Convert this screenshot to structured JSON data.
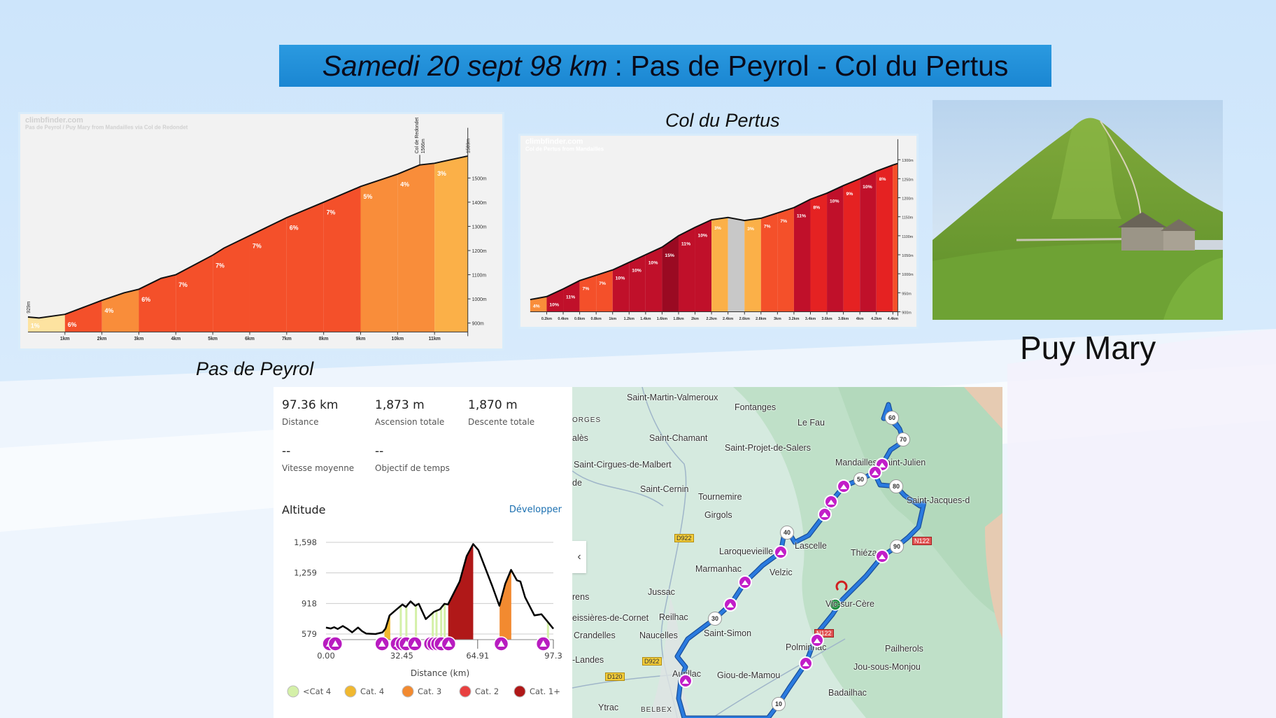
{
  "title": {
    "italic": "Samedi 20 sept 98 km",
    "rest": ": Pas de Peyrol - Col du Pertus"
  },
  "captions": {
    "peyrol": "Pas de Peyrol",
    "pertus": "Col du Pertus",
    "puy_mary": "Puy Mary"
  },
  "peyrol_chart": {
    "brand": "climbfinder.com",
    "subtitle": "Pas de Peyrol / Puy Mary from Mandailles via Col de Redondet",
    "start_label": "929m",
    "col_label": "Col de Redondet",
    "col_elev": "1566m",
    "end_label": "1589m",
    "y_ticks": [
      900,
      1000,
      1100,
      1200,
      1300,
      1400,
      1500
    ],
    "y_unit": "m",
    "x_ticks": [
      "1km",
      "2km",
      "3km",
      "4km",
      "5km",
      "6km",
      "7km",
      "8km",
      "9km",
      "10km",
      "11km"
    ],
    "profile": [
      [
        0,
        925
      ],
      [
        0.3,
        921
      ],
      [
        1,
        936
      ],
      [
        1.5,
        965
      ],
      [
        2,
        994
      ],
      [
        2.6,
        1025
      ],
      [
        3,
        1040
      ],
      [
        3.6,
        1085
      ],
      [
        4,
        1100
      ],
      [
        5,
        1181
      ],
      [
        5.3,
        1210
      ],
      [
        6,
        1262
      ],
      [
        7,
        1336
      ],
      [
        8,
        1400
      ],
      [
        9,
        1465
      ],
      [
        10,
        1516
      ],
      [
        10.6,
        1554
      ],
      [
        11,
        1561
      ],
      [
        11.9,
        1591
      ]
    ],
    "segments": [
      {
        "from": 0,
        "to": 1,
        "color": "#fde3a0",
        "label": "1%"
      },
      {
        "from": 1,
        "to": 2,
        "color": "#f4502a",
        "label": "6%"
      },
      {
        "from": 2,
        "to": 3,
        "color": "#f98d3a",
        "label": "4%"
      },
      {
        "from": 3,
        "to": 4,
        "color": "#f4502a",
        "label": "6%"
      },
      {
        "from": 4,
        "to": 5,
        "color": "#f4502a",
        "label": "7%"
      },
      {
        "from": 5,
        "to": 6,
        "color": "#f4502a",
        "label": "7%"
      },
      {
        "from": 6,
        "to": 7,
        "color": "#f4502a",
        "label": "7%"
      },
      {
        "from": 7,
        "to": 8,
        "color": "#f4502a",
        "label": "6%"
      },
      {
        "from": 8,
        "to": 9,
        "color": "#f4502a",
        "label": "7%"
      },
      {
        "from": 9,
        "to": 10,
        "color": "#f98d3a",
        "label": "5%"
      },
      {
        "from": 10,
        "to": 11,
        "color": "#f98d3a",
        "label": "4%"
      },
      {
        "from": 11,
        "to": 11.9,
        "color": "#fbb048",
        "label": "3%"
      }
    ]
  },
  "pertus_chart": {
    "brand": "climbfinder.com",
    "subtitle": "Col de Pertus from Mandailles",
    "start_elev": 932,
    "seg_len": 0.2,
    "y_ticks": [
      900,
      950,
      1000,
      1050,
      1100,
      1150,
      1200,
      1250,
      1300
    ],
    "y_unit": "m",
    "x_ticks": [
      "0.2km",
      "0.4km",
      "0.6km",
      "0.8km",
      "1km",
      "1.2km",
      "1.4km",
      "1.6km",
      "1.8km",
      "2km",
      "2.2km",
      "2.4km",
      "2.6km",
      "2.8km",
      "3km",
      "3.2km",
      "3.4km",
      "3.6km",
      "3.8km",
      "4km",
      "4.2km",
      "4.4km"
    ],
    "segments": [
      {
        "g": 4,
        "color": "#f98d3a",
        "label": "4%"
      },
      {
        "g": 10,
        "color": "#c0102a",
        "label": "10%"
      },
      {
        "g": 11,
        "color": "#c0102a",
        "label": "11%"
      },
      {
        "g": 7,
        "color": "#f4502a",
        "label": "7%"
      },
      {
        "g": 7,
        "color": "#f4502a",
        "label": "7%"
      },
      {
        "g": 10,
        "color": "#c0102a",
        "label": "10%"
      },
      {
        "g": 10,
        "color": "#c0102a",
        "label": "10%"
      },
      {
        "g": 10,
        "color": "#c0102a",
        "label": "10%"
      },
      {
        "g": 15,
        "color": "#9a0a22",
        "label": "15%"
      },
      {
        "g": 11,
        "color": "#c0102a",
        "label": "11%"
      },
      {
        "g": 10,
        "color": "#c0102a",
        "label": "10%"
      },
      {
        "g": 3,
        "color": "#fbb048",
        "label": "3%"
      },
      {
        "g": -4,
        "color": "#c8c8c8",
        "label": ""
      },
      {
        "g": 3,
        "color": "#fbb048",
        "label": "3%"
      },
      {
        "g": 7,
        "color": "#f4502a",
        "label": "7%"
      },
      {
        "g": 7,
        "color": "#f4502a",
        "label": "7%"
      },
      {
        "g": 11,
        "color": "#c0102a",
        "label": "11%"
      },
      {
        "g": 8,
        "color": "#e52222",
        "label": "8%"
      },
      {
        "g": 10,
        "color": "#c0102a",
        "label": "10%"
      },
      {
        "g": 9,
        "color": "#e52222",
        "label": "9%"
      },
      {
        "g": 10,
        "color": "#c0102a",
        "label": "10%"
      },
      {
        "g": 8,
        "color": "#e52222",
        "label": "8%"
      },
      {
        "g": 7,
        "color": "#f4502a",
        "label": ""
      }
    ]
  },
  "stats": {
    "distance": {
      "value": "97.36 km",
      "label": "Distance"
    },
    "ascent": {
      "value": "1,873 m",
      "label": "Ascension totale"
    },
    "descent": {
      "value": "1,870 m",
      "label": "Descente totale"
    },
    "speed": {
      "value": "--",
      "label": "Vitesse moyenne"
    },
    "time": {
      "value": "--",
      "label": "Objectif de temps"
    },
    "altitude_title": "Altitude",
    "expand": "Développer"
  },
  "chart_data": {
    "type": "area",
    "xlabel": "Distance (km)",
    "ylabel": "",
    "xlim": [
      0,
      97.3
    ],
    "ylim": [
      579,
      1598
    ],
    "y_ticks": [
      "579",
      "918",
      "1,259",
      "1,598"
    ],
    "y_tick_values": [
      579,
      918,
      1259,
      1598
    ],
    "x_ticks": [
      "0.00",
      "32.45",
      "64.91",
      "97.3"
    ],
    "x_tick_values": [
      0,
      32.45,
      64.91,
      97.3
    ],
    "profile": [
      [
        0,
        651
      ],
      [
        2,
        640
      ],
      [
        3.5,
        655
      ],
      [
        5,
        635
      ],
      [
        7.2,
        668
      ],
      [
        9,
        640
      ],
      [
        11.2,
        598
      ],
      [
        13.7,
        651
      ],
      [
        15.5,
        610
      ],
      [
        17.2,
        584
      ],
      [
        21.2,
        579
      ],
      [
        24.2,
        598
      ],
      [
        25.5,
        640
      ],
      [
        27.2,
        786
      ],
      [
        30.2,
        853
      ],
      [
        32.7,
        907
      ],
      [
        34.2,
        880
      ],
      [
        36.2,
        942
      ],
      [
        38.2,
        893
      ],
      [
        39.7,
        915
      ],
      [
        42.7,
        745
      ],
      [
        46.2,
        826
      ],
      [
        48.7,
        853
      ],
      [
        50.7,
        915
      ],
      [
        52.2,
        907
      ],
      [
        57.2,
        1163
      ],
      [
        60.2,
        1445
      ],
      [
        63,
        1579
      ],
      [
        65.2,
        1512
      ],
      [
        71.2,
        1109
      ],
      [
        74.2,
        893
      ],
      [
        76.7,
        1136
      ],
      [
        79.2,
        1292
      ],
      [
        81.7,
        1176
      ],
      [
        83.2,
        1163
      ],
      [
        85.2,
        988
      ],
      [
        89.2,
        786
      ],
      [
        92.2,
        799
      ],
      [
        95.2,
        705
      ],
      [
        97.3,
        638
      ]
    ],
    "climbs": [
      {
        "from": 25,
        "to": 27.5,
        "cat": "Cat. 4"
      },
      {
        "from": 52.3,
        "to": 63,
        "cat": "Cat. 1+"
      },
      {
        "from": 74.3,
        "to": 79.3,
        "cat": "Cat. 3"
      },
      {
        "at": 32,
        "cat": "<Cat 4"
      },
      {
        "at": 34.4,
        "cat": "<Cat 4"
      },
      {
        "at": 38.5,
        "cat": "<Cat 4"
      },
      {
        "at": 45.7,
        "cat": "<Cat 4"
      },
      {
        "at": 47.3,
        "cat": "<Cat 4"
      },
      {
        "at": 49.3,
        "cat": "<Cat 4"
      },
      {
        "at": 50.8,
        "cat": "<Cat 4"
      },
      {
        "at": 95,
        "cat": "<Cat 4"
      }
    ],
    "markers_km": [
      1.5,
      4,
      24,
      30.5,
      32.7,
      34.3,
      38,
      44.8,
      46.2,
      47.8,
      49.3,
      52.5,
      75,
      93
    ],
    "legend": [
      {
        "name": "<Cat 4",
        "color": "#d4f0a8"
      },
      {
        "name": "Cat. 4",
        "color": "#f0b830"
      },
      {
        "name": "Cat. 3",
        "color": "#f28a30"
      },
      {
        "name": "Cat. 2",
        "color": "#e84040"
      },
      {
        "name": "Cat. 1+",
        "color": "#b01818"
      }
    ]
  },
  "map": {
    "places": [
      "Saint-Martin-Valmeroux",
      "Fontanges",
      "ORGES",
      "Le Fau",
      "Saint-Chamant",
      "alès",
      "Saint-Projet-de-Salers",
      "Saint-Cirgues-de-Malbert",
      "de",
      "Saint-Cernin",
      "Mandailles-Saint-Julien",
      "Tournemire",
      "Saint-Jacques-d",
      "Girgols",
      "Lascelle",
      "Laroquevieille",
      "Thiézac",
      "Marmanhac",
      "Velzic",
      "Jussac",
      "rens",
      "Vic-sur-Cère",
      "Reilhac",
      "eissières-de-Cornet",
      "Saint-Simon",
      "Crandelles",
      "Naucelles",
      "Polminhac",
      "Pailherols",
      "-Landes",
      "Jou-sous-Monjou",
      "Aurillac",
      "Giou-de-Mamou",
      "Badailhac",
      "Ytrac",
      "BELBEX"
    ],
    "roads": [
      "D922",
      "D922",
      "D120",
      "N122",
      "N122"
    ],
    "km_markers": [
      "60",
      "70",
      "50",
      "80",
      "40",
      "90",
      "30",
      "10"
    ],
    "route_color": "#2a7be0",
    "climb_marker_color": "#c21ec8",
    "collapse": "‹"
  }
}
